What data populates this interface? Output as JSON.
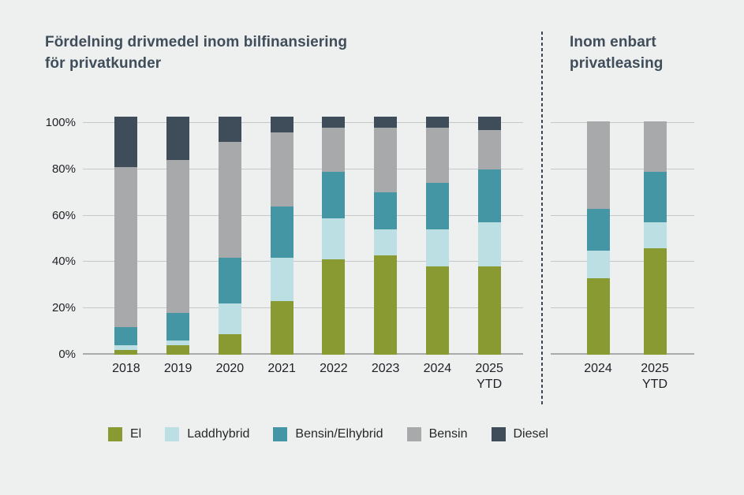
{
  "header": {
    "left_title_line1": "Fördelning drivmedel inom bilfinansiering",
    "left_title_line2": "för privatkunder",
    "right_title_line1": "Inom enbart",
    "right_title_line2": "privatleasing"
  },
  "colors": {
    "background": "#eeefef",
    "title_text": "#3f4e5a",
    "axis_text": "#1d2125",
    "gridline": "#c6c7c8",
    "baseline": "#a8aaac",
    "divider": "#3e4852",
    "el": "#8a9a33",
    "laddhybrid": "#bcdfe4",
    "bensin_elhybrid": "#4496a5",
    "bensin": "#a7a9ab",
    "diesel": "#3f4c59"
  },
  "y_axis": {
    "ticks": [
      "0%",
      "20%",
      "40%",
      "60%",
      "80%",
      "100%"
    ]
  },
  "legend": {
    "items": [
      {
        "label": "El",
        "color": "#8a9a33"
      },
      {
        "label": "Laddhybrid",
        "color": "#bcdfe4"
      },
      {
        "label": "Bensin/Elhybrid",
        "color": "#4496a5"
      },
      {
        "label": "Bensin",
        "color": "#a7a9ab"
      },
      {
        "label": "Diesel",
        "color": "#3f4c59"
      }
    ]
  },
  "chart_data": [
    {
      "type": "bar",
      "stacked": true,
      "title": "Fördelning drivmedel inom bilfinansiering för privatkunder",
      "ylim": [
        0,
        100
      ],
      "unit": "%",
      "grid": true,
      "categories": [
        {
          "label": "2018",
          "sub": ""
        },
        {
          "label": "2019",
          "sub": ""
        },
        {
          "label": "2020",
          "sub": ""
        },
        {
          "label": "2021",
          "sub": ""
        },
        {
          "label": "2022",
          "sub": ""
        },
        {
          "label": "2023",
          "sub": ""
        },
        {
          "label": "2024",
          "sub": ""
        },
        {
          "label": "2025",
          "sub": "YTD"
        }
      ],
      "series": [
        {
          "name": "El",
          "color": "#8a9a33",
          "values": [
            2,
            4,
            9,
            23,
            41,
            43,
            38,
            38
          ]
        },
        {
          "name": "Laddhybrid",
          "color": "#bcdfe4",
          "values": [
            2,
            2,
            13,
            19,
            18,
            11,
            16,
            19
          ]
        },
        {
          "name": "Bensin/Elhybrid",
          "color": "#4496a5",
          "values": [
            8,
            12,
            20,
            22,
            20,
            16,
            20,
            23
          ]
        },
        {
          "name": "Bensin",
          "color": "#a7a9ab",
          "values": [
            69,
            66,
            50,
            32,
            19,
            28,
            24,
            17
          ]
        },
        {
          "name": "Diesel",
          "color": "#3f4c59",
          "values": [
            19,
            16,
            8,
            4,
            2,
            2,
            2,
            3
          ]
        }
      ]
    },
    {
      "type": "bar",
      "stacked": true,
      "title": "Inom enbart privatleasing",
      "ylim": [
        0,
        100
      ],
      "unit": "%",
      "grid": true,
      "categories": [
        {
          "label": "2024",
          "sub": ""
        },
        {
          "label": "2025",
          "sub": "YTD"
        }
      ],
      "series": [
        {
          "name": "El",
          "color": "#8a9a33",
          "values": [
            33,
            46
          ]
        },
        {
          "name": "Laddhybrid",
          "color": "#bcdfe4",
          "values": [
            12,
            11
          ]
        },
        {
          "name": "Bensin/Elhybrid",
          "color": "#4496a5",
          "values": [
            18,
            22
          ]
        },
        {
          "name": "Bensin",
          "color": "#a7a9ab",
          "values": [
            37,
            21
          ]
        },
        {
          "name": "Diesel",
          "color": "#3f4c59",
          "values": [
            0,
            0
          ]
        }
      ]
    }
  ]
}
